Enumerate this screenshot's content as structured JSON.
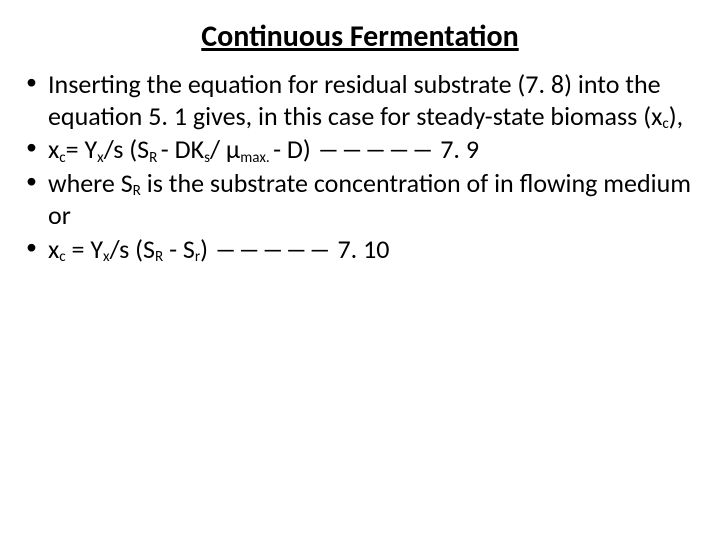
{
  "title": "Continuous Fermentation",
  "bullets": {
    "b1": {
      "pre": "Inserting the equation for residual substrate (7. 8) into the equation 5. 1 gives, in this case for steady-state biomass (x",
      "sub": "c",
      "post": "),"
    },
    "b2": {
      "t1": "x",
      "s1": "c",
      "t2": "= Y",
      "s2": "x",
      "t3": "/s (S",
      "s3": "R ",
      "t4": "- DK",
      "s4": "s",
      "t5": "/ µ",
      "s5": "max. ",
      "t6": "- D) ――――― 7. 9"
    },
    "b3": {
      "t1": "where S",
      "s1": "R",
      "t2": " is the substrate concentration of in flowing medium or"
    },
    "b4": {
      "t1": "x",
      "s1": "c",
      "t2": " = Y",
      "s2": "x",
      "t3": "/s (S",
      "s3": "R",
      "t4": " - S",
      "s4": "r",
      "t5": ") ――――― 7. 10"
    }
  },
  "colors": {
    "background": "#ffffff",
    "text": "#000000"
  },
  "typography": {
    "title_fontsize": 30,
    "body_fontsize": 26,
    "font_family": "Calibri"
  }
}
